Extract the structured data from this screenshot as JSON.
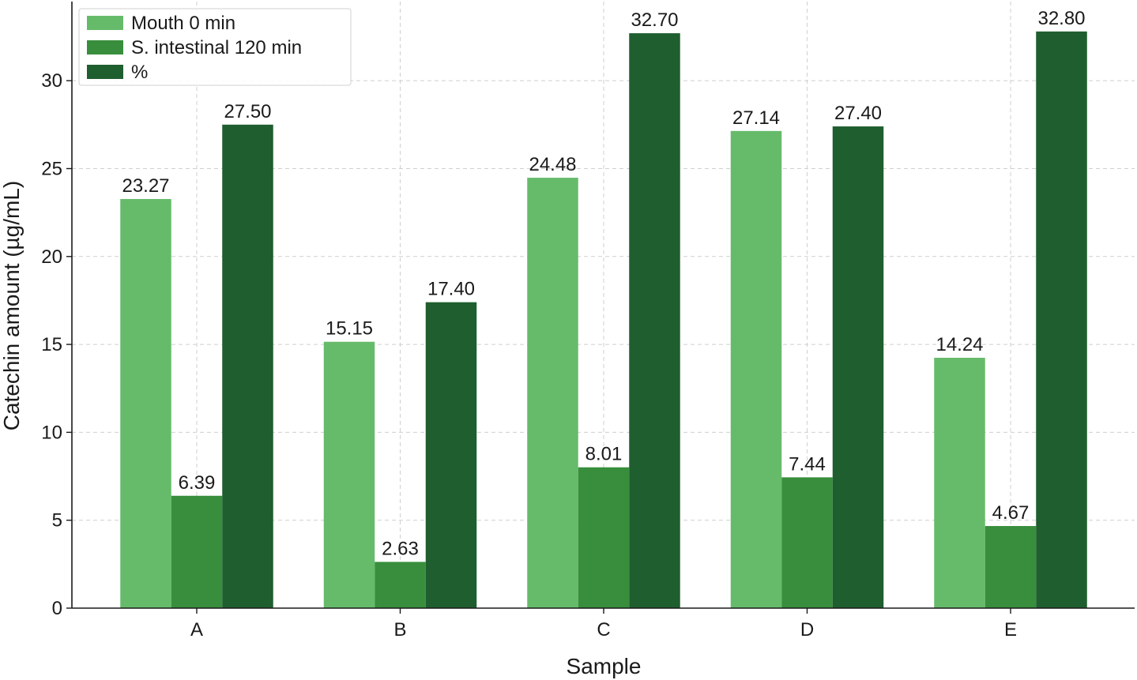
{
  "chart_data": {
    "type": "bar",
    "title": "",
    "xlabel": "Sample",
    "ylabel": "Catechin amount (µg/mL)",
    "categories": [
      "A",
      "B",
      "C",
      "D",
      "E"
    ],
    "ylim": [
      0,
      34.5
    ],
    "yticks": [
      0,
      5,
      10,
      15,
      20,
      25,
      30
    ],
    "grid": true,
    "legend_position": "top-left",
    "series": [
      {
        "name": "Mouth 0 min",
        "color": "#66bb6a",
        "values": [
          23.27,
          15.15,
          24.48,
          27.14,
          14.24
        ],
        "labels": [
          "23.27",
          "15.15",
          "24.48",
          "27.14",
          "14.24"
        ]
      },
      {
        "name": "S. intestinal 120 min",
        "color": "#388e3c",
        "values": [
          6.39,
          2.63,
          8.01,
          7.44,
          4.67
        ],
        "labels": [
          "6.39",
          "2.63",
          "8.01",
          "7.44",
          "4.67"
        ]
      },
      {
        "name": "%",
        "color": "#1f5e2f",
        "values": [
          27.5,
          17.4,
          32.7,
          27.4,
          32.8
        ],
        "labels": [
          "27.50",
          "17.40",
          "32.70",
          "27.40",
          "32.80"
        ]
      }
    ]
  }
}
